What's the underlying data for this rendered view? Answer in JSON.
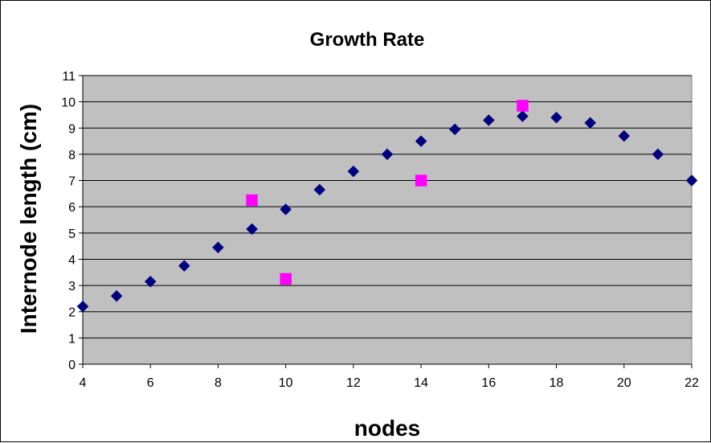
{
  "chart_data": {
    "type": "scatter",
    "title": "Growth Rate",
    "xlabel": "nodes",
    "ylabel": "Internode length (cm)",
    "xlim": [
      4,
      22
    ],
    "ylim": [
      0,
      11
    ],
    "xticks": [
      "4",
      "6",
      "8",
      "10",
      "12",
      "14",
      "16",
      "18",
      "20",
      "22"
    ],
    "yticks": [
      "0",
      "1",
      "2",
      "3",
      "4",
      "5",
      "6",
      "7",
      "8",
      "9",
      "10",
      "11"
    ],
    "grid": "horizontal",
    "legend": "none",
    "plot_background": "#C0C0C0",
    "series": [
      {
        "marker": "diamond",
        "color": "#000080",
        "points": [
          {
            "x": 4,
            "y": 2.2
          },
          {
            "x": 5,
            "y": 2.6
          },
          {
            "x": 6,
            "y": 3.15
          },
          {
            "x": 7,
            "y": 3.75
          },
          {
            "x": 8,
            "y": 4.45
          },
          {
            "x": 9,
            "y": 5.15
          },
          {
            "x": 10,
            "y": 5.9
          },
          {
            "x": 11,
            "y": 6.65
          },
          {
            "x": 12,
            "y": 7.35
          },
          {
            "x": 13,
            "y": 8.0
          },
          {
            "x": 14,
            "y": 8.5
          },
          {
            "x": 15,
            "y": 8.95
          },
          {
            "x": 16,
            "y": 9.3
          },
          {
            "x": 17,
            "y": 9.45
          },
          {
            "x": 18,
            "y": 9.4
          },
          {
            "x": 19,
            "y": 9.2
          },
          {
            "x": 20,
            "y": 8.7
          },
          {
            "x": 21,
            "y": 8.0
          },
          {
            "x": 22,
            "y": 7.0
          }
        ]
      },
      {
        "marker": "square",
        "color": "#FF00FF",
        "points": [
          {
            "x": 9,
            "y": 6.25
          },
          {
            "x": 10,
            "y": 3.25
          },
          {
            "x": 14,
            "y": 7.0
          },
          {
            "x": 17,
            "y": 9.85
          }
        ]
      }
    ]
  }
}
